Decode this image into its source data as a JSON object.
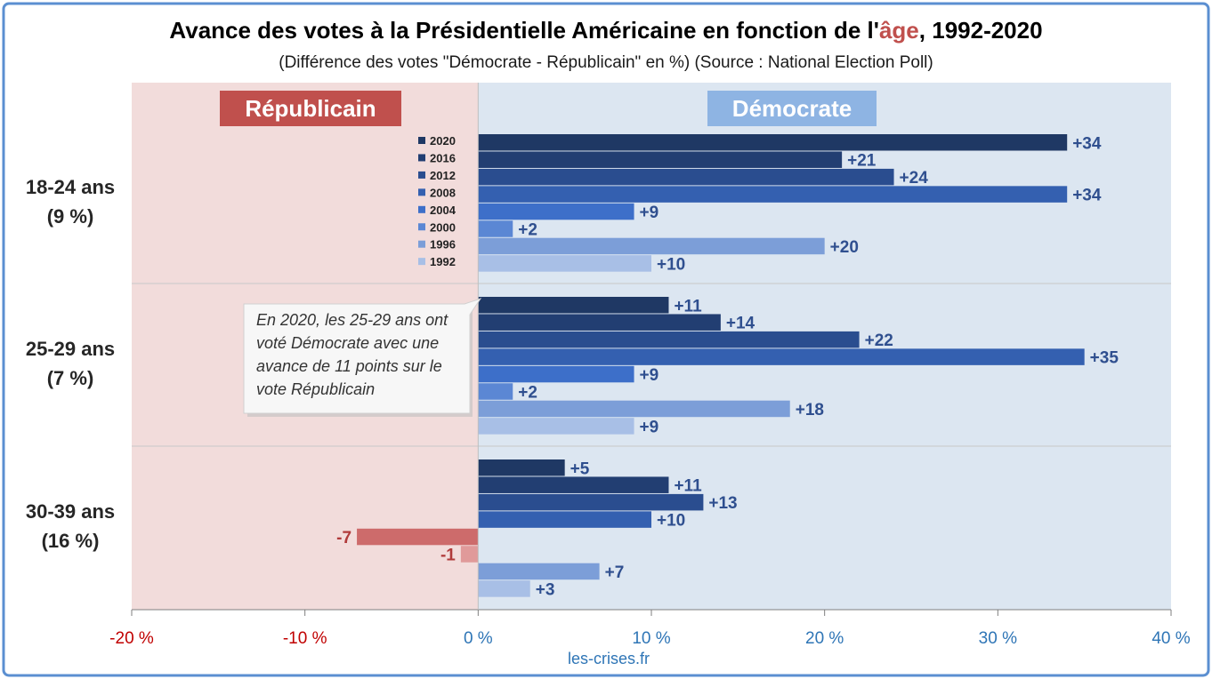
{
  "title": {
    "before": "Avance des votes à la Présidentielle Américaine en fonction de l'",
    "highlight": "âge",
    "after": ", 1992-2020",
    "highlight_color": "#c0504d"
  },
  "subtitle": "(Différence des votes \"Démocrate - Républicain\" en %) (Source : National Election Poll)",
  "footer": "les-crises.fr",
  "chart_data": {
    "type": "bar",
    "orientation": "horizontal",
    "xlim": [
      -20,
      40
    ],
    "x_ticks": [
      -20,
      -10,
      0,
      10,
      20,
      30,
      40
    ],
    "x_tick_labels": [
      "-20 %",
      "-10 %",
      "0 %",
      "10 %",
      "20 %",
      "30 %",
      "40 %"
    ],
    "regions": [
      {
        "label": "Républicain",
        "from": -20,
        "to": 0,
        "bg": "#f2dcdb",
        "label_bg": "#c0504d"
      },
      {
        "label": "Démocrate",
        "from": 0,
        "to": 40,
        "bg": "#dce6f1",
        "label_bg": "#8eb4e3"
      }
    ],
    "groups": [
      {
        "label": "18-24 ans",
        "share": "(9 %)"
      },
      {
        "label": "25-29 ans",
        "share": "(7 %)"
      },
      {
        "label": "30-39 ans",
        "share": "(16 %)"
      }
    ],
    "series": [
      {
        "name": "2020",
        "values": [
          34,
          11,
          5
        ],
        "labels": [
          "+34",
          "+11",
          "+5"
        ],
        "color": "#1f3864"
      },
      {
        "name": "2016",
        "values": [
          21,
          14,
          11
        ],
        "labels": [
          "+21",
          "+14",
          "+11"
        ],
        "color": "#223e72"
      },
      {
        "name": "2012",
        "values": [
          24,
          22,
          13
        ],
        "labels": [
          "+24",
          "+22",
          "+13"
        ],
        "color": "#2a4d8f"
      },
      {
        "name": "2008",
        "values": [
          34,
          35,
          10
        ],
        "labels": [
          "+34",
          "+35",
          "+10"
        ],
        "color": "#3460b0"
      },
      {
        "name": "2004",
        "values": [
          9,
          9,
          -7
        ],
        "labels": [
          "+9",
          "+9",
          "-7"
        ],
        "color": "#3d6fc9"
      },
      {
        "name": "2000",
        "values": [
          2,
          2,
          -1
        ],
        "labels": [
          "+2",
          "+2",
          "-1"
        ],
        "color": "#5b87d4"
      },
      {
        "name": "1996",
        "values": [
          20,
          18,
          7
        ],
        "labels": [
          "+20",
          "+18",
          "+7"
        ],
        "color": "#7c9ed8"
      },
      {
        "name": "1992",
        "values": [
          10,
          9,
          3
        ],
        "labels": [
          "+10",
          "+9",
          "+3"
        ],
        "color": "#a8bfe6"
      }
    ],
    "negative_colors": {
      "2004": "#cd6b6b",
      "2000": "#e09a9a"
    },
    "positive_label_color": "#2f4f8f",
    "negative_label_color": "#b03a3a",
    "annotation": "En 2020, les 25-29 ans ont voté Démocrate avec une avance de 11 points sur le vote Républicain"
  }
}
